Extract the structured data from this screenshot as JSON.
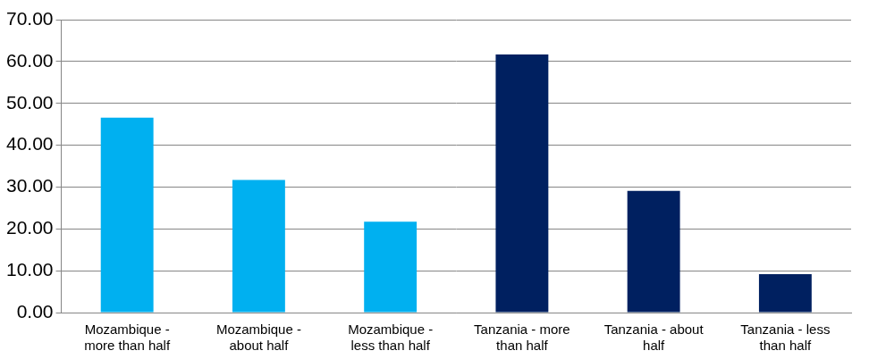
{
  "chart_data": {
    "type": "bar",
    "categories": [
      [
        "Mozambique -",
        "more than half"
      ],
      [
        "Mozambique -",
        "about half"
      ],
      [
        "Mozambique -",
        "less than half"
      ],
      [
        "Tanzania - more",
        "than half"
      ],
      [
        "Tanzania - about",
        "half"
      ],
      [
        "Tanzania - less",
        "than half"
      ]
    ],
    "values": [
      46.6,
      31.7,
      21.7,
      61.7,
      29.1,
      9.2
    ],
    "colors": [
      "#00b0f0",
      "#00b0f0",
      "#00b0f0",
      "#002060",
      "#002060",
      "#002060"
    ],
    "ylim": [
      0,
      70
    ],
    "yticks": [
      {
        "value": 0,
        "label": "0.00"
      },
      {
        "value": 10,
        "label": "10.00"
      },
      {
        "value": 20,
        "label": "20.00"
      },
      {
        "value": 30,
        "label": "30.00"
      },
      {
        "value": 40,
        "label": "40.00"
      },
      {
        "value": 50,
        "label": "50.00"
      },
      {
        "value": 60,
        "label": "60.00"
      },
      {
        "value": 70,
        "label": "70.00"
      }
    ],
    "grid": true
  }
}
